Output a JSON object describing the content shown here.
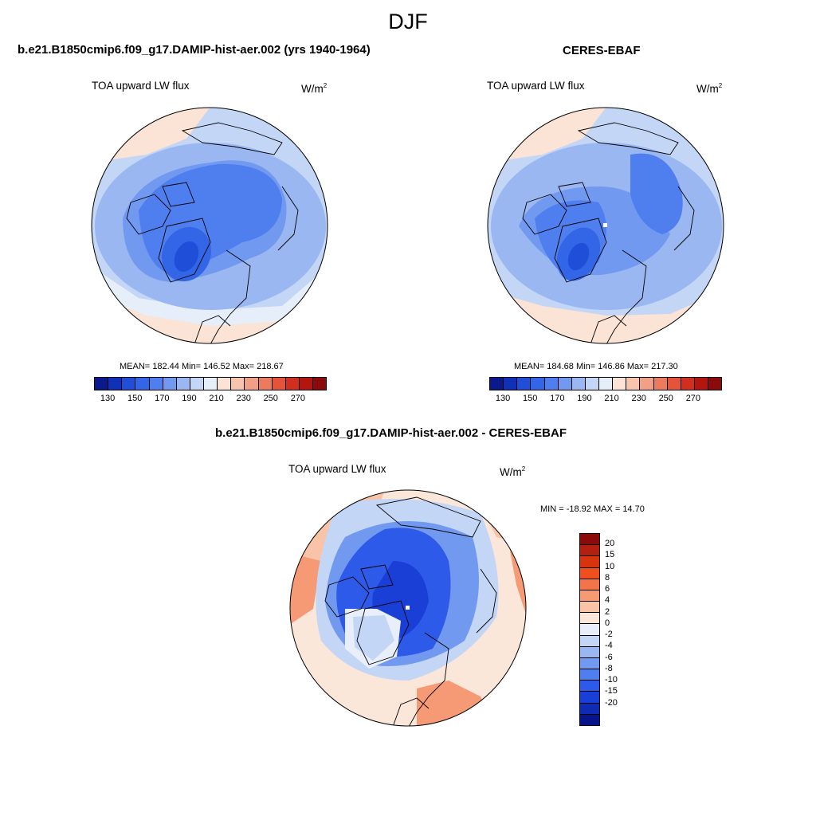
{
  "season": "DJF",
  "panels": {
    "model": {
      "header": "b.e21.B1850cmip6.f09_g17.DAMIP-hist-aer.002 (yrs 1940-1964)",
      "variable": "TOA upward LW flux",
      "unit_base": "W/m",
      "unit_exp": "2",
      "stats": "MEAN= 182.44  Min= 146.52  Max= 218.67"
    },
    "obs": {
      "header": "CERES-EBAF",
      "variable": "TOA upward LW flux",
      "unit_base": "W/m",
      "unit_exp": "2",
      "stats": "MEAN= 184.68  Min= 146.86  Max= 217.30"
    },
    "diff": {
      "header": "b.e21.B1850cmip6.f09_g17.DAMIP-hist-aer.002 - CERES-EBAF",
      "variable": "TOA upward LW flux",
      "unit_base": "W/m",
      "unit_exp": "2",
      "stats": "MIN = -18.92 MAX =  14.70"
    }
  },
  "abs_colorbar": {
    "colors": [
      "#0a1a8c",
      "#1030b8",
      "#1f4fd8",
      "#3366e6",
      "#4f7eee",
      "#7299f0",
      "#9ab7f2",
      "#c4d6f6",
      "#e6eefa",
      "#fbe3d6",
      "#f7c5ad",
      "#f2a085",
      "#ec7b5c",
      "#e2553a",
      "#d22e1c",
      "#b3160f",
      "#8c0a0a"
    ],
    "ticks": [
      "130",
      "150",
      "170",
      "190",
      "210",
      "230",
      "250",
      "270"
    ]
  },
  "diff_colorbar": {
    "colors": [
      "#8c0a0a",
      "#b3200f",
      "#d6330f",
      "#ef4f1c",
      "#f4744a",
      "#f59a74",
      "#f8c3a6",
      "#fbe6da",
      "#e8effa",
      "#c4d6f6",
      "#9ab7f2",
      "#7299f0",
      "#4f7eee",
      "#2d5ae8",
      "#1a3fd6",
      "#0f2bb4",
      "#08148c"
    ],
    "ticks": [
      "20",
      "15",
      "10",
      "8",
      "6",
      "4",
      "2",
      "0",
      "-2",
      "-4",
      "-6",
      "-8",
      "-10",
      "-15",
      "-20"
    ]
  }
}
